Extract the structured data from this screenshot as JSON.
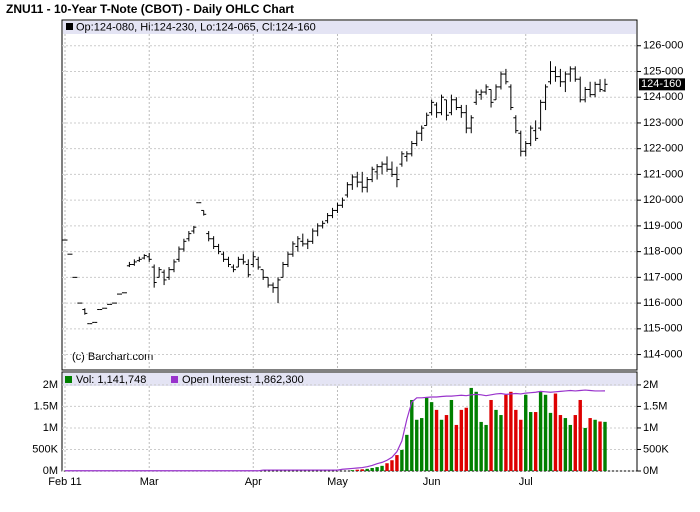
{
  "chart_data": [
    {
      "type": "ohlc",
      "title": "ZNU11 - 10-Year T-Note (CBOT) - Daily OHLC Chart",
      "legend": "Op:124-080, Hi:124-230, Lo:124-065, Cl:124-160",
      "watermark": "(c) Barchart.com",
      "color": "#000000",
      "grid": true,
      "ylim": [
        113.4,
        127.0
      ],
      "yticks": [
        {
          "value": 114,
          "label": "114-000"
        },
        {
          "value": 115,
          "label": "115-000"
        },
        {
          "value": 116,
          "label": "116-000"
        },
        {
          "value": 117,
          "label": "117-000"
        },
        {
          "value": 118,
          "label": "118-000"
        },
        {
          "value": 119,
          "label": "119-000"
        },
        {
          "value": 120,
          "label": "120-000"
        },
        {
          "value": 121,
          "label": "121-000"
        },
        {
          "value": 122,
          "label": "122-000"
        },
        {
          "value": 123,
          "label": "123-000"
        },
        {
          "value": 124,
          "label": "124-000"
        },
        {
          "value": 125,
          "label": "125-000"
        },
        {
          "value": 126,
          "label": "126-000"
        }
      ],
      "last_price": {
        "value": 124.5,
        "label": "124-160"
      },
      "ohlc": [
        [
          118.45,
          118.45,
          118.45,
          118.45
        ],
        [
          117.9,
          117.9,
          117.9,
          117.9
        ],
        [
          117.0,
          117.0,
          117.0,
          117.0
        ],
        [
          116.0,
          116.0,
          116.0,
          116.0
        ],
        [
          115.75,
          115.8,
          115.55,
          115.6
        ],
        [
          115.2,
          115.2,
          115.2,
          115.2
        ],
        [
          115.25,
          115.25,
          115.25,
          115.25
        ],
        [
          115.75,
          115.75,
          115.75,
          115.75
        ],
        [
          115.8,
          115.8,
          115.8,
          115.8
        ],
        [
          115.95,
          115.95,
          115.95,
          115.95
        ],
        [
          116.0,
          116.0,
          116.0,
          116.0
        ],
        [
          116.35,
          116.35,
          116.35,
          116.35
        ],
        [
          116.4,
          116.4,
          116.4,
          116.4
        ],
        [
          117.45,
          117.6,
          117.4,
          117.5
        ],
        [
          117.5,
          117.7,
          117.45,
          117.6
        ],
        [
          117.65,
          117.8,
          117.6,
          117.7
        ],
        [
          117.75,
          117.9,
          117.7,
          117.85
        ],
        [
          117.8,
          117.95,
          117.6,
          117.7
        ],
        [
          117.4,
          117.5,
          116.6,
          116.8
        ],
        [
          117.0,
          117.4,
          117.0,
          117.3
        ],
        [
          117.2,
          117.3,
          116.7,
          116.9
        ],
        [
          117.0,
          117.4,
          116.9,
          117.3
        ],
        [
          117.3,
          117.7,
          117.2,
          117.6
        ],
        [
          117.7,
          118.2,
          117.6,
          118.1
        ],
        [
          118.1,
          118.5,
          118.0,
          118.4
        ],
        [
          118.5,
          118.8,
          118.4,
          118.7
        ],
        [
          118.8,
          119.0,
          118.7,
          118.95
        ],
        [
          119.9,
          119.9,
          119.9,
          119.9
        ],
        [
          119.6,
          119.6,
          119.4,
          119.45
        ],
        [
          118.7,
          118.8,
          118.4,
          118.5
        ],
        [
          118.5,
          118.6,
          118.1,
          118.2
        ],
        [
          118.2,
          118.3,
          117.9,
          118.0
        ],
        [
          117.9,
          118.0,
          117.6,
          117.7
        ],
        [
          117.7,
          117.8,
          117.4,
          117.5
        ],
        [
          117.4,
          117.5,
          117.2,
          117.3
        ],
        [
          117.4,
          117.8,
          117.4,
          117.7
        ],
        [
          117.7,
          117.9,
          117.5,
          117.6
        ],
        [
          117.5,
          117.7,
          117.0,
          117.1
        ],
        [
          117.5,
          118.0,
          117.4,
          117.8
        ],
        [
          117.7,
          117.8,
          117.3,
          117.4
        ],
        [
          117.3,
          117.3,
          116.9,
          117.0
        ],
        [
          117.0,
          117.0,
          116.6,
          116.7
        ],
        [
          116.7,
          116.8,
          116.4,
          116.6
        ],
        [
          116.6,
          117.0,
          116.0,
          116.9
        ],
        [
          117.0,
          117.6,
          117.0,
          117.5
        ],
        [
          117.5,
          118.0,
          117.4,
          117.9
        ],
        [
          117.9,
          118.4,
          117.8,
          118.3
        ],
        [
          118.2,
          118.6,
          118.0,
          118.5
        ],
        [
          118.4,
          118.7,
          118.2,
          118.3
        ],
        [
          118.3,
          118.5,
          118.1,
          118.4
        ],
        [
          118.4,
          118.9,
          118.3,
          118.8
        ],
        [
          118.8,
          119.1,
          118.6,
          119.0
        ],
        [
          119.0,
          119.2,
          118.9,
          119.1
        ],
        [
          119.2,
          119.5,
          119.1,
          119.4
        ],
        [
          119.4,
          119.7,
          119.3,
          119.6
        ],
        [
          119.6,
          119.9,
          119.5,
          119.8
        ],
        [
          119.8,
          120.1,
          119.7,
          120.0
        ],
        [
          120.2,
          120.7,
          120.1,
          120.6
        ],
        [
          120.6,
          121.0,
          120.4,
          120.9
        ],
        [
          120.9,
          121.1,
          120.5,
          120.7
        ],
        [
          120.7,
          121.1,
          120.3,
          120.5
        ],
        [
          120.5,
          120.9,
          120.3,
          120.8
        ],
        [
          120.8,
          121.3,
          120.7,
          121.2
        ],
        [
          121.1,
          121.4,
          120.8,
          121.3
        ],
        [
          121.3,
          121.5,
          121.0,
          121.4
        ],
        [
          121.4,
          121.7,
          121.1,
          121.2
        ],
        [
          121.2,
          121.5,
          120.9,
          121.0
        ],
        [
          121.0,
          121.3,
          120.5,
          120.8
        ],
        [
          121.4,
          121.9,
          121.3,
          121.8
        ],
        [
          121.7,
          121.9,
          121.5,
          121.8
        ],
        [
          121.8,
          122.3,
          121.7,
          122.2
        ],
        [
          122.2,
          122.7,
          122.1,
          122.6
        ],
        [
          122.6,
          122.9,
          122.3,
          122.8
        ],
        [
          122.9,
          123.4,
          122.9,
          123.3
        ],
        [
          123.4,
          123.9,
          123.3,
          123.8
        ],
        [
          123.7,
          123.8,
          123.2,
          123.4
        ],
        [
          123.4,
          124.1,
          123.3,
          124.0
        ],
        [
          123.9,
          123.9,
          123.1,
          123.3
        ],
        [
          123.4,
          124.1,
          123.3,
          123.9
        ],
        [
          123.9,
          124.0,
          123.5,
          123.6
        ],
        [
          123.6,
          123.7,
          123.2,
          123.4
        ],
        [
          123.4,
          123.7,
          122.6,
          122.8
        ],
        [
          122.8,
          123.3,
          122.6,
          123.2
        ],
        [
          123.8,
          124.3,
          123.7,
          124.2
        ],
        [
          124.1,
          124.3,
          123.9,
          124.2
        ],
        [
          124.2,
          124.5,
          124.1,
          124.4
        ],
        [
          124.3,
          124.3,
          123.6,
          123.8
        ],
        [
          123.9,
          124.5,
          123.9,
          124.4
        ],
        [
          124.4,
          125.0,
          124.3,
          124.9
        ],
        [
          124.9,
          125.1,
          124.5,
          124.6
        ],
        [
          124.4,
          124.5,
          123.5,
          123.6
        ],
        [
          123.2,
          123.3,
          122.6,
          122.7
        ],
        [
          122.6,
          122.7,
          121.7,
          121.9
        ],
        [
          121.9,
          122.3,
          121.7,
          122.2
        ],
        [
          122.2,
          122.9,
          122.1,
          122.8
        ],
        [
          122.7,
          123.1,
          122.3,
          122.4
        ],
        [
          122.8,
          123.9,
          122.7,
          123.8
        ],
        [
          123.8,
          124.5,
          123.5,
          124.4
        ],
        [
          124.6,
          125.4,
          124.5,
          125.0
        ],
        [
          125.0,
          125.2,
          124.6,
          124.8
        ],
        [
          124.8,
          125.1,
          124.4,
          124.6
        ],
        [
          124.6,
          125.0,
          124.2,
          124.9
        ],
        [
          124.9,
          125.2,
          124.6,
          125.1
        ],
        [
          125.1,
          125.2,
          124.6,
          124.7
        ],
        [
          124.7,
          124.8,
          123.8,
          123.9
        ],
        [
          123.9,
          124.4,
          123.8,
          124.3
        ],
        [
          124.3,
          124.6,
          124.0,
          124.1
        ],
        [
          124.1,
          124.6,
          124.0,
          124.5
        ],
        [
          124.5,
          124.7,
          124.2,
          124.3
        ],
        [
          124.25,
          124.71875,
          124.203125,
          124.5
        ]
      ]
    },
    {
      "type": "volume",
      "grid": true,
      "up_color": "#008000",
      "down_color": "#dd0000",
      "ylim": [
        0,
        2300000
      ],
      "yticks": [
        {
          "value": 0,
          "label": "0M"
        },
        {
          "value": 500000,
          "label": "500K"
        },
        {
          "value": 1000000,
          "label": "1M"
        },
        {
          "value": 1500000,
          "label": "1.5M"
        },
        {
          "value": 2000000,
          "label": "2M"
        }
      ],
      "categories": [
        "Feb 11",
        null,
        null,
        null,
        null,
        null,
        null,
        null,
        null,
        null,
        null,
        null,
        null,
        null,
        null,
        null,
        null,
        "Mar",
        null,
        null,
        null,
        null,
        null,
        null,
        null,
        null,
        null,
        null,
        null,
        null,
        null,
        null,
        null,
        null,
        null,
        null,
        null,
        null,
        "Apr",
        null,
        null,
        null,
        null,
        null,
        null,
        null,
        null,
        null,
        null,
        null,
        null,
        null,
        null,
        null,
        null,
        "May",
        null,
        null,
        null,
        null,
        null,
        null,
        null,
        null,
        null,
        null,
        null,
        null,
        null,
        null,
        null,
        null,
        null,
        null,
        "Jun",
        null,
        null,
        null,
        null,
        null,
        null,
        null,
        null,
        null,
        null,
        null,
        null,
        null,
        null,
        null,
        null,
        null,
        null,
        "Jul",
        null,
        null,
        null,
        null,
        null,
        null,
        null,
        null,
        null,
        null,
        null,
        null,
        null,
        null,
        null,
        null
      ],
      "series": [
        {
          "name": "Vol: 1,141,748",
          "kind": "bar",
          "color": "#008000",
          "values": [
            0,
            0,
            0,
            0,
            0,
            0,
            0,
            0,
            0,
            0,
            0,
            0,
            0,
            0,
            0,
            0,
            0,
            0,
            0,
            0,
            0,
            0,
            0,
            0,
            0,
            0,
            0,
            0,
            0,
            0,
            0,
            0,
            0,
            0,
            0,
            0,
            0,
            0,
            0,
            0,
            0,
            0,
            0,
            0,
            0,
            0,
            0,
            0,
            0,
            0,
            0,
            0,
            0,
            0,
            0,
            0,
            0,
            0,
            20000,
            30000,
            40000,
            50000,
            70000,
            90000,
            120000,
            180000,
            250000,
            370000,
            490000,
            840000,
            1650000,
            1190000,
            1230000,
            1700000,
            1600000,
            1420000,
            1190000,
            1300000,
            1650000,
            1070000,
            1420000,
            1470000,
            1930000,
            1840000,
            1140000,
            1070000,
            1650000,
            1420000,
            1300000,
            1770000,
            1840000,
            1420000,
            1190000,
            1770000,
            1370000,
            1370000,
            1840000,
            1770000,
            1350000,
            1800000,
            1300000,
            1230000,
            1070000,
            1300000,
            1650000,
            1000000,
            1230000,
            1190000,
            1150000,
            1141748
          ]
        },
        {
          "name": "Open Interest: 1,862,300",
          "kind": "line",
          "color": "#9933cc",
          "values": [
            5000,
            5000,
            5000,
            5000,
            5000,
            5000,
            5000,
            5000,
            5000,
            5000,
            5000,
            5000,
            5000,
            5000,
            5000,
            5000,
            5000,
            5000,
            5000,
            5000,
            5000,
            5000,
            5000,
            5000,
            5000,
            5000,
            5000,
            5000,
            5000,
            5000,
            5000,
            5000,
            5000,
            5000,
            5000,
            5000,
            5000,
            5000,
            5000,
            5000,
            20000,
            20000,
            20000,
            20000,
            20000,
            20000,
            20000,
            20000,
            20000,
            20000,
            20000,
            20000,
            20000,
            20000,
            20000,
            20000,
            40000,
            50000,
            60000,
            70000,
            80000,
            100000,
            130000,
            170000,
            200000,
            250000,
            320000,
            450000,
            700000,
            1200000,
            1600000,
            1700000,
            1700000,
            1710000,
            1720000,
            1720000,
            1730000,
            1740000,
            1740000,
            1750000,
            1760000,
            1750000,
            1770000,
            1780000,
            1770000,
            1750000,
            1770000,
            1790000,
            1800000,
            1780000,
            1790000,
            1800000,
            1790000,
            1810000,
            1820000,
            1830000,
            1850000,
            1840000,
            1830000,
            1840000,
            1850000,
            1860000,
            1870000,
            1860000,
            1870000,
            1880000,
            1870000,
            1860000,
            1860000,
            1862300
          ]
        }
      ]
    }
  ]
}
